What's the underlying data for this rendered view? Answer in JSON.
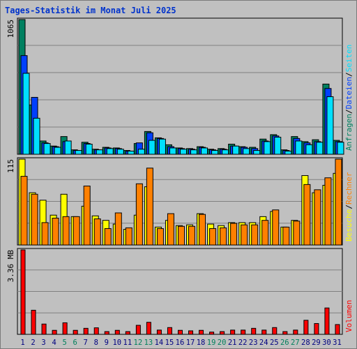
{
  "title": "Tages-Statistik im Monat Juli 2025",
  "colors": {
    "hits": "#008060",
    "files": "#0040ff",
    "pages": "#00e0ff",
    "visits": "#ffff00",
    "sites": "#ff8000",
    "volume": "#ff0000",
    "weekend_day": "#00805c",
    "weekday": "#000080",
    "plot_bg": "#c0c0c0",
    "gridline": "#808080"
  },
  "chart_data": [
    {
      "type": "bar",
      "panel": "top",
      "max_label": "1065",
      "ymax": 1065,
      "categories": [
        "1",
        "2",
        "3",
        "4",
        "5",
        "6",
        "7",
        "8",
        "9",
        "10",
        "11",
        "12",
        "13",
        "14",
        "15",
        "16",
        "17",
        "18",
        "19",
        "20",
        "21",
        "22",
        "23",
        "24",
        "25",
        "26",
        "27",
        "28",
        "29",
        "30",
        "31"
      ],
      "weekend_days": [
        "5",
        "6",
        "12",
        "13",
        "19",
        "20",
        "26",
        "27"
      ],
      "series": [
        {
          "name": "Anfragen",
          "color": "#008060",
          "values": [
            1065,
            390,
            105,
            65,
            140,
            35,
            95,
            40,
            55,
            50,
            30,
            85,
            180,
            130,
            75,
            50,
            45,
            60,
            40,
            45,
            80,
            60,
            55,
            120,
            155,
            35,
            140,
            100,
            115,
            555,
            110
          ]
        },
        {
          "name": "Dateien",
          "color": "#0040ff",
          "values": [
            780,
            450,
            90,
            60,
            100,
            30,
            85,
            35,
            50,
            45,
            25,
            90,
            170,
            125,
            60,
            45,
            40,
            55,
            35,
            40,
            65,
            55,
            45,
            105,
            145,
            30,
            125,
            90,
            100,
            520,
            100
          ]
        },
        {
          "name": "Seiten",
          "color": "#00e0ff",
          "values": [
            640,
            285,
            85,
            55,
            105,
            30,
            80,
            35,
            45,
            40,
            25,
            40,
            110,
            120,
            50,
            40,
            35,
            50,
            30,
            35,
            65,
            45,
            30,
            100,
            135,
            25,
            105,
            75,
            95,
            455,
            95
          ]
        }
      ],
      "legend": [
        "Anfragen",
        "/",
        "Dateien",
        "/",
        "Seiten"
      ]
    },
    {
      "type": "bar",
      "panel": "middle",
      "max_label": "115",
      "ymax": 115,
      "series": [
        {
          "name": "Besuche",
          "color": "#ffff00",
          "values": [
            115,
            70,
            60,
            40,
            68,
            38,
            52,
            39,
            33,
            28,
            21,
            40,
            78,
            24,
            33,
            26,
            27,
            42,
            28,
            26,
            30,
            30,
            30,
            38,
            45,
            24,
            33,
            93,
            70,
            80,
            96
          ]
        },
        {
          "name": "Rechner",
          "color": "#ff8000",
          "values": [
            92,
            68,
            30,
            36,
            38,
            38,
            79,
            35,
            22,
            43,
            23,
            82,
            103,
            22,
            42,
            25,
            25,
            41,
            22,
            23,
            29,
            27,
            27,
            33,
            47,
            24,
            32,
            81,
            74,
            90,
            115
          ]
        }
      ],
      "legend": [
        "Besuche",
        "/",
        "Rechner"
      ]
    },
    {
      "type": "bar",
      "panel": "bottom",
      "max_label": "3.36 MB",
      "ymax": 3.36,
      "unit": "MB",
      "series": [
        {
          "name": "Volumen",
          "color": "#ff0000",
          "values": [
            3.36,
            0.96,
            0.41,
            0.16,
            0.46,
            0.16,
            0.24,
            0.26,
            0.11,
            0.16,
            0.11,
            0.36,
            0.48,
            0.17,
            0.27,
            0.16,
            0.14,
            0.16,
            0.09,
            0.11,
            0.17,
            0.17,
            0.24,
            0.17,
            0.27,
            0.11,
            0.17,
            0.56,
            0.43,
            1.05,
            0.39
          ]
        }
      ],
      "legend": [
        "Volumen"
      ]
    }
  ]
}
